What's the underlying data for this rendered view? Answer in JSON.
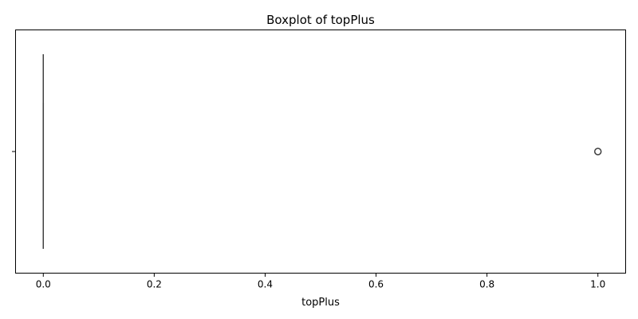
{
  "chart_data": {
    "type": "boxplot",
    "title": "Boxplot of topPlus",
    "xlabel": "topPlus",
    "ylabel": "",
    "xlim": [
      -0.05,
      1.05
    ],
    "x_ticks": [
      0.0,
      0.2,
      0.4,
      0.6,
      0.8,
      1.0
    ],
    "x_tick_labels": [
      "0.0",
      "0.2",
      "0.4",
      "0.6",
      "0.8",
      "1.0"
    ],
    "grid": false,
    "box": {
      "min": 0.0,
      "q1": 0.0,
      "median": 0.0,
      "q3": 0.0,
      "max": 0.0,
      "outliers": [
        1.0
      ]
    },
    "colors": {
      "box_edge": "#3f3f3f",
      "outlier_edge": "#3f3f3f"
    }
  }
}
